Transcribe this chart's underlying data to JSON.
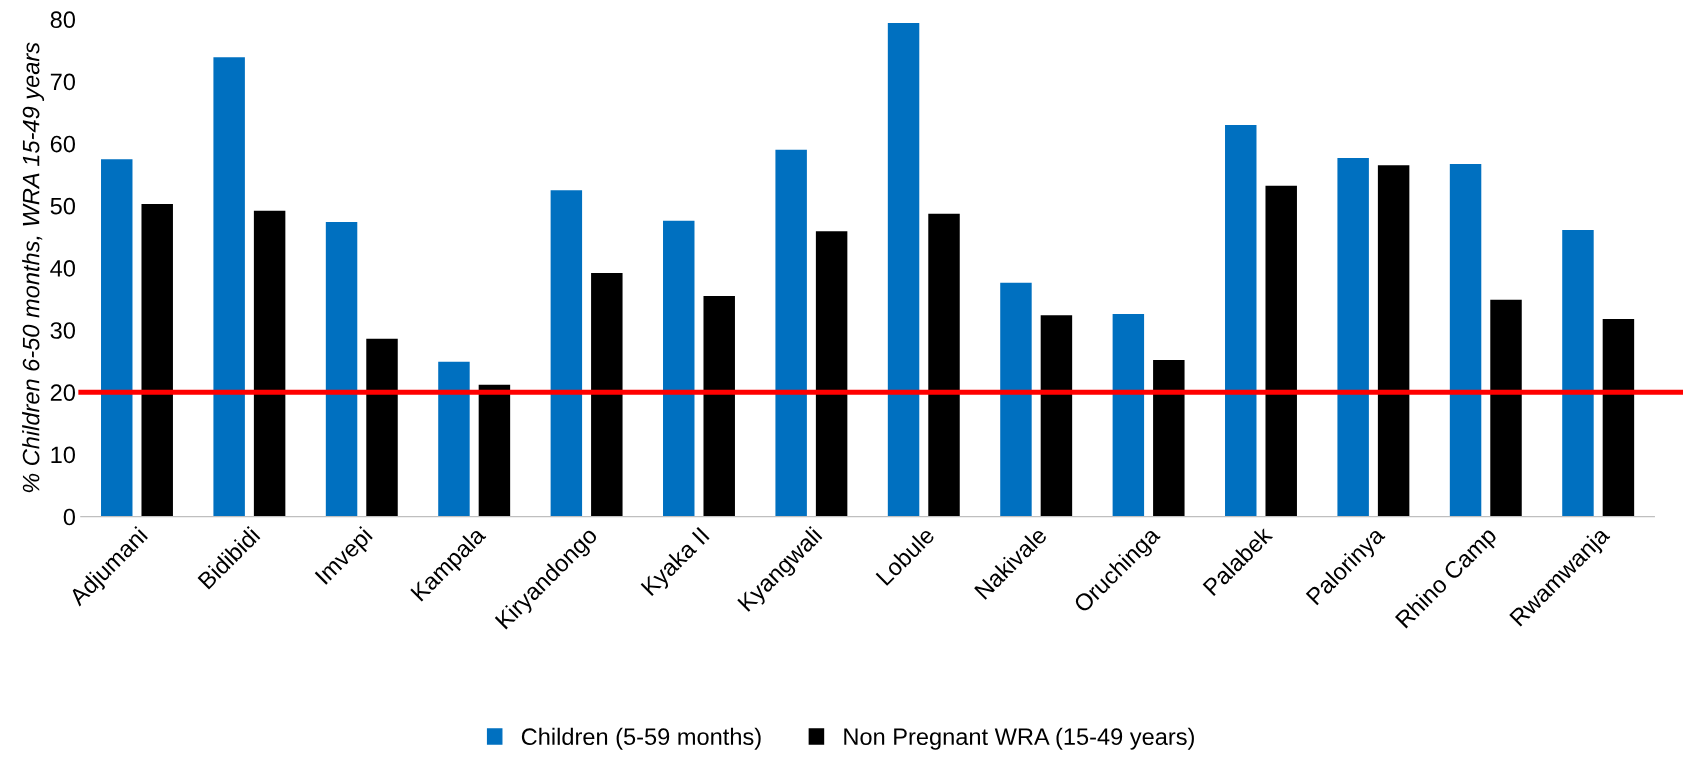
{
  "chart_data": {
    "type": "bar",
    "ylabel": "% Children 6-50 months, WRA 15-49 years",
    "categories": [
      "Adjumani",
      "Bidibidi",
      "Imvepi",
      "Kampala",
      "Kiryandongo",
      "Kyaka II",
      "Kyangwali",
      "Lobule",
      "Nakivale",
      "Oruchinga",
      "Palabek",
      "Palorinya",
      "Rhino Camp",
      "Rwamwanja"
    ],
    "series": [
      {
        "name": "Children (5-59 months)",
        "color": "#0070c0",
        "values": [
          57.5,
          73.9,
          47.4,
          24.9,
          52.5,
          47.6,
          59,
          79.4,
          37.6,
          32.6,
          63,
          57.7,
          56.7,
          46.1
        ]
      },
      {
        "name": "Non Pregnant WRA (15-49 years)",
        "color": "#000000",
        "values": [
          50.3,
          49.2,
          28.6,
          21.2,
          39.2,
          35.5,
          45.9,
          48.7,
          32.4,
          25.2,
          53.2,
          56.5,
          34.9,
          31.8
        ]
      }
    ],
    "ylim": [
      0,
      80
    ],
    "yticks": [
      0,
      10,
      20,
      30,
      40,
      50,
      60,
      70,
      80
    ],
    "ref_lines": [
      {
        "axis": "y",
        "value": 20,
        "label": null,
        "color": "#ff0000"
      }
    ],
    "grid": false,
    "legend": "bottom"
  }
}
